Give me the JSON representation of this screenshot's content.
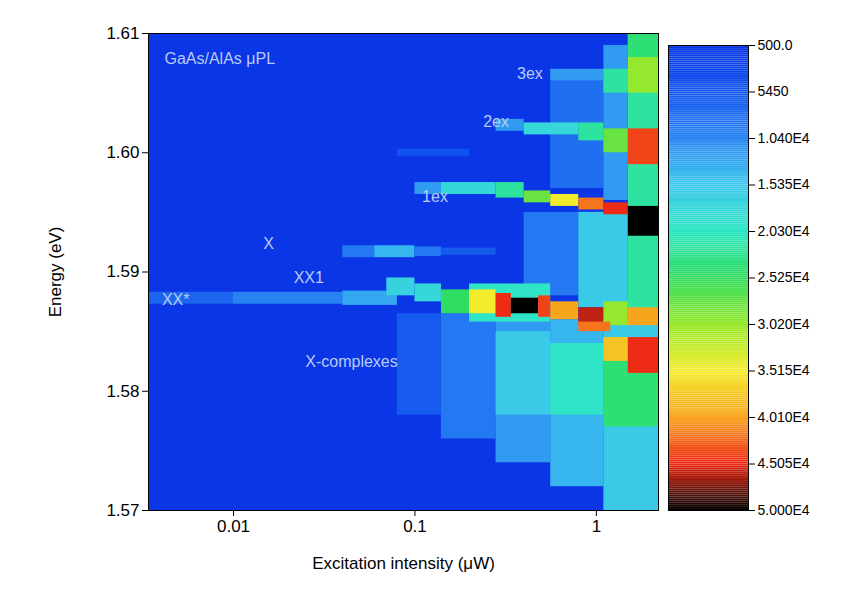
{
  "chart_data": {
    "type": "heatmap",
    "xlabel": "Excitation intensity (μW)",
    "ylabel": "Energy (eV)",
    "log": "x",
    "xlim": [
      0.0034,
      2.2
    ],
    "xticks": [
      0.01,
      0.1,
      1
    ],
    "ylim": [
      1.57,
      1.61
    ],
    "yticks": [
      1.57,
      1.58,
      1.59,
      {
        "value": 1.6,
        "label": "1.60"
      },
      1.61
    ],
    "annotations": [
      {
        "text": "GaAs/AlAs μPL",
        "x": 0.0084,
        "y": 1.6079
      },
      {
        "text": "3ex",
        "x": 0.43,
        "y": 1.6066
      },
      {
        "text": "2ex",
        "x": 0.28,
        "y": 1.6026
      },
      {
        "text": "1ex",
        "x": 0.129,
        "y": 1.5963
      },
      {
        "text": "X",
        "x": 0.0156,
        "y": 1.5924
      },
      {
        "text": "XX1",
        "x": 0.026,
        "y": 1.5895
      },
      {
        "text": "XX*",
        "x": 0.0048,
        "y": 1.5877
      },
      {
        "text": "X-complexes",
        "x": 0.0447,
        "y": 1.5825
      }
    ],
    "colorbar": {
      "range": [
        500,
        50000
      ],
      "ticks": [
        {
          "value": 500,
          "label": "500.0"
        },
        5450,
        {
          "value": 10400,
          "label": "1.040E4"
        },
        {
          "value": 15350,
          "label": "1.535E4"
        },
        {
          "value": 20300,
          "label": "2.030E4"
        },
        {
          "value": 25250,
          "label": "2.525E4"
        },
        {
          "value": 30200,
          "label": "3.020E4"
        },
        {
          "value": 35150,
          "label": "3.515E4"
        },
        {
          "value": 40100,
          "label": "4.010E4"
        },
        {
          "value": 45050,
          "label": "4.505E4"
        },
        {
          "value": 50000,
          "label": "5.000E4"
        }
      ]
    },
    "cells": [
      {
        "x1": 0.08,
        "x2": 0.14,
        "y1": 1.578,
        "y2": 1.5865,
        "value": 6000
      },
      {
        "x1": 0.14,
        "x2": 0.28,
        "y1": 1.576,
        "y2": 1.5865,
        "value": 9000
      },
      {
        "x1": 0.28,
        "x2": 0.56,
        "y1": 1.574,
        "y2": 1.586,
        "value": 12000
      },
      {
        "x1": 0.56,
        "x2": 1.1,
        "y1": 1.572,
        "y2": 1.586,
        "value": 14000
      },
      {
        "x1": 1.1,
        "x2": 2.2,
        "y1": 1.57,
        "y2": 1.586,
        "value": 16000
      },
      {
        "x1": 0.28,
        "x2": 0.56,
        "y1": 1.578,
        "y2": 1.585,
        "value": 16000
      },
      {
        "x1": 0.56,
        "x2": 1.1,
        "y1": 1.578,
        "y2": 1.584,
        "value": 20000
      },
      {
        "x1": 1.1,
        "x2": 2.2,
        "y1": 1.577,
        "y2": 1.584,
        "value": 24000
      },
      {
        "x1": 0.4,
        "x2": 0.8,
        "y1": 1.588,
        "y2": 1.595,
        "value": 9000
      },
      {
        "x1": 0.8,
        "x2": 1.5,
        "y1": 1.587,
        "y2": 1.595,
        "value": 16000
      },
      {
        "x1": 1.5,
        "x2": 2.2,
        "y1": 1.586,
        "y2": 1.61,
        "value": 22000
      },
      {
        "x1": 0.56,
        "x2": 1.1,
        "y1": 1.597,
        "y2": 1.606,
        "value": 8000
      },
      {
        "x1": 1.1,
        "x2": 1.5,
        "y1": 1.596,
        "y2": 1.609,
        "value": 12000
      },
      {
        "x1": 0.0034,
        "x2": 0.01,
        "y1": 1.5873,
        "y2": 1.5883,
        "value": 7000
      },
      {
        "x1": 0.01,
        "x2": 0.04,
        "y1": 1.5873,
        "y2": 1.5883,
        "value": 10000
      },
      {
        "x1": 0.04,
        "x2": 0.08,
        "y1": 1.5872,
        "y2": 1.5884,
        "value": 13000
      },
      {
        "x1": 0.04,
        "x2": 0.06,
        "y1": 1.5912,
        "y2": 1.5922,
        "value": 9000
      },
      {
        "x1": 0.06,
        "x2": 0.1,
        "y1": 1.5912,
        "y2": 1.5922,
        "value": 14000
      },
      {
        "x1": 0.1,
        "x2": 0.14,
        "y1": 1.5913,
        "y2": 1.5921,
        "value": 9000
      },
      {
        "x1": 0.14,
        "x2": 0.28,
        "y1": 1.5914,
        "y2": 1.592,
        "value": 6000
      },
      {
        "x1": 0.08,
        "x2": 0.2,
        "y1": 1.5997,
        "y2": 1.6003,
        "value": 5000
      },
      {
        "x1": 0.07,
        "x2": 0.1,
        "y1": 1.588,
        "y2": 1.5895,
        "value": 17000
      },
      {
        "x1": 0.1,
        "x2": 0.14,
        "y1": 1.5875,
        "y2": 1.589,
        "value": 18000
      },
      {
        "x1": 0.2,
        "x2": 0.56,
        "y1": 1.5858,
        "y2": 1.589,
        "value": 20000
      },
      {
        "x1": 0.14,
        "x2": 0.2,
        "y1": 1.5865,
        "y2": 1.5885,
        "value": 25000
      },
      {
        "x1": 0.2,
        "x2": 0.28,
        "y1": 1.5865,
        "y2": 1.5885,
        "value": 35000
      },
      {
        "x1": 0.28,
        "x2": 0.34,
        "y1": 1.5862,
        "y2": 1.5882,
        "value": 45000
      },
      {
        "x1": 0.34,
        "x2": 0.48,
        "y1": 1.5865,
        "y2": 1.5878,
        "value": 50000
      },
      {
        "x1": 0.48,
        "x2": 0.56,
        "y1": 1.5862,
        "y2": 1.588,
        "value": 44000
      },
      {
        "x1": 0.56,
        "x2": 0.8,
        "y1": 1.586,
        "y2": 1.5875,
        "value": 40000
      },
      {
        "x1": 0.8,
        "x2": 1.1,
        "y1": 1.5855,
        "y2": 1.587,
        "value": 46000
      },
      {
        "x1": 1.1,
        "x2": 1.5,
        "y1": 1.5855,
        "y2": 1.5875,
        "value": 30000
      },
      {
        "x1": 1.5,
        "x2": 2.2,
        "y1": 1.5855,
        "y2": 1.587,
        "value": 40000
      },
      {
        "x1": 0.8,
        "x2": 1.2,
        "y1": 1.585,
        "y2": 1.5858,
        "value": 42000
      },
      {
        "x1": 1.1,
        "x2": 1.5,
        "y1": 1.5825,
        "y2": 1.5845,
        "value": 38000
      },
      {
        "x1": 1.5,
        "x2": 2.2,
        "y1": 1.5815,
        "y2": 1.5845,
        "value": 45000
      },
      {
        "x1": 0.1,
        "x2": 0.14,
        "y1": 1.5965,
        "y2": 1.5975,
        "value": 12000
      },
      {
        "x1": 0.14,
        "x2": 0.28,
        "y1": 1.5965,
        "y2": 1.5975,
        "value": 18000
      },
      {
        "x1": 0.28,
        "x2": 0.4,
        "y1": 1.5962,
        "y2": 1.5975,
        "value": 22000
      },
      {
        "x1": 0.4,
        "x2": 0.56,
        "y1": 1.5958,
        "y2": 1.5968,
        "value": 28000
      },
      {
        "x1": 0.56,
        "x2": 0.8,
        "y1": 1.5955,
        "y2": 1.5965,
        "value": 35000
      },
      {
        "x1": 0.8,
        "x2": 1.1,
        "y1": 1.5952,
        "y2": 1.5962,
        "value": 42000
      },
      {
        "x1": 1.1,
        "x2": 1.5,
        "y1": 1.5948,
        "y2": 1.5958,
        "value": 45000
      },
      {
        "x1": 1.5,
        "x2": 2.2,
        "y1": 1.593,
        "y2": 1.5955,
        "value": 50000
      },
      {
        "x1": 0.28,
        "x2": 0.4,
        "y1": 1.6018,
        "y2": 1.6028,
        "value": 12000
      },
      {
        "x1": 0.4,
        "x2": 0.8,
        "y1": 1.6015,
        "y2": 1.6025,
        "value": 18000
      },
      {
        "x1": 0.8,
        "x2": 1.1,
        "y1": 1.601,
        "y2": 1.6025,
        "value": 22000
      },
      {
        "x1": 1.1,
        "x2": 1.5,
        "y1": 1.6,
        "y2": 1.602,
        "value": 28000
      },
      {
        "x1": 1.5,
        "x2": 2.2,
        "y1": 1.599,
        "y2": 1.602,
        "value": 44000
      },
      {
        "x1": 0.56,
        "x2": 1.1,
        "y1": 1.606,
        "y2": 1.607,
        "value": 12000
      },
      {
        "x1": 1.1,
        "x2": 1.5,
        "y1": 1.605,
        "y2": 1.607,
        "value": 22000
      },
      {
        "x1": 1.5,
        "x2": 2.2,
        "y1": 1.605,
        "y2": 1.608,
        "value": 30000
      },
      {
        "x1": 1.5,
        "x2": 2.2,
        "y1": 1.608,
        "y2": 1.61,
        "value": 24000
      }
    ]
  }
}
